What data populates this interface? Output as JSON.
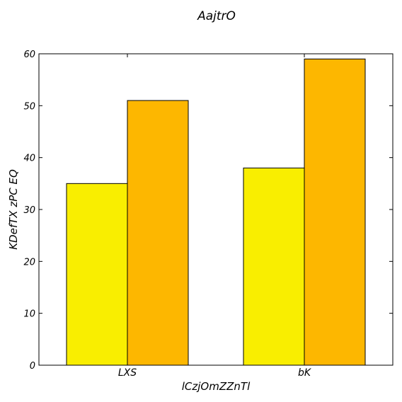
{
  "chart_data": {
    "type": "bar",
    "title": "AajtrO",
    "xlabel": "lCzjOmZZnTl",
    "ylabel": "KDefTX zPC EQ",
    "categories": [
      "LXS",
      "bK"
    ],
    "series": [
      {
        "values": [
          35,
          38
        ],
        "color": "#f9ee00"
      },
      {
        "values": [
          51,
          59
        ],
        "color": "#fdb700"
      }
    ],
    "ylim": [
      0,
      60
    ],
    "yticks": [
      0,
      10,
      20,
      30,
      40,
      50,
      60
    ],
    "grid": false
  }
}
